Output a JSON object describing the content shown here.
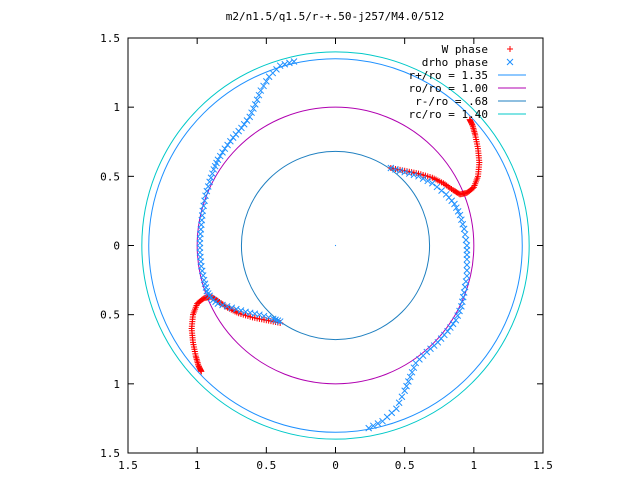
{
  "chart_data": {
    "type": "scatter",
    "title": "m2/n1.5/q1.5/r-+.50-j257/M4.0/512",
    "xlim": [
      -1.5,
      1.5
    ],
    "ylim": [
      -1.5,
      1.5
    ],
    "x_ticks": [
      "1.5",
      "1",
      "0.5",
      "0",
      "0.5",
      "1",
      "1.5"
    ],
    "y_ticks": [
      "1.5",
      "1",
      "0.5",
      "0",
      "0.5",
      "1",
      "1.5"
    ],
    "legend_position": "top-right",
    "grid": false,
    "series": [
      {
        "name": "W phase",
        "marker": "+",
        "color": "#ff0000",
        "arms": [
          [
            [
              0.4,
              0.56
            ],
            [
              0.5,
              0.54
            ],
            [
              0.6,
              0.52
            ],
            [
              0.7,
              0.49
            ],
            [
              0.78,
              0.45
            ],
            [
              0.85,
              0.4
            ],
            [
              0.9,
              0.37
            ],
            [
              0.95,
              0.38
            ],
            [
              1.0,
              0.42
            ],
            [
              1.03,
              0.5
            ],
            [
              1.04,
              0.6
            ],
            [
              1.03,
              0.7
            ],
            [
              1.01,
              0.8
            ],
            [
              0.99,
              0.87
            ],
            [
              0.97,
              0.91
            ]
          ],
          [
            [
              -0.4,
              -0.56
            ],
            [
              -0.5,
              -0.54
            ],
            [
              -0.6,
              -0.52
            ],
            [
              -0.7,
              -0.49
            ],
            [
              -0.78,
              -0.45
            ],
            [
              -0.85,
              -0.4
            ],
            [
              -0.9,
              -0.37
            ],
            [
              -0.95,
              -0.38
            ],
            [
              -1.0,
              -0.42
            ],
            [
              -1.03,
              -0.5
            ],
            [
              -1.04,
              -0.6
            ],
            [
              -1.03,
              -0.7
            ],
            [
              -1.01,
              -0.8
            ],
            [
              -0.99,
              -0.87
            ],
            [
              -0.97,
              -0.91
            ]
          ]
        ]
      },
      {
        "name": "drho phase",
        "marker": "x",
        "color": "#1e90ff",
        "arms": [
          [
            [
              -0.3,
              1.33
            ],
            [
              -0.4,
              1.3
            ],
            [
              -0.48,
              1.22
            ],
            [
              -0.54,
              1.12
            ],
            [
              -0.58,
              1.02
            ],
            [
              -0.62,
              0.93
            ],
            [
              -0.68,
              0.85
            ],
            [
              -0.74,
              0.78
            ],
            [
              -0.8,
              0.7
            ],
            [
              -0.85,
              0.62
            ],
            [
              -0.88,
              0.55
            ],
            [
              -0.91,
              0.46
            ],
            [
              -0.94,
              0.36
            ],
            [
              -0.96,
              0.25
            ],
            [
              -0.97,
              0.15
            ],
            [
              -0.98,
              0.05
            ],
            [
              -0.98,
              -0.05
            ],
            [
              -0.97,
              -0.15
            ],
            [
              -0.95,
              -0.25
            ],
            [
              -0.93,
              -0.33
            ],
            [
              -0.9,
              -0.38
            ],
            [
              -0.85,
              -0.42
            ],
            [
              -0.75,
              -0.45
            ],
            [
              -0.65,
              -0.48
            ],
            [
              -0.55,
              -0.5
            ],
            [
              -0.45,
              -0.53
            ],
            [
              -0.4,
              -0.55
            ]
          ],
          [
            [
              0.24,
              -1.32
            ],
            [
              0.34,
              -1.27
            ],
            [
              0.44,
              -1.18
            ],
            [
              0.5,
              -1.05
            ],
            [
              0.54,
              -0.95
            ],
            [
              0.58,
              -0.85
            ],
            [
              0.66,
              -0.77
            ],
            [
              0.74,
              -0.7
            ],
            [
              0.81,
              -0.62
            ],
            [
              0.87,
              -0.54
            ],
            [
              0.91,
              -0.44
            ],
            [
              0.93,
              -0.34
            ],
            [
              0.95,
              -0.22
            ],
            [
              0.95,
              -0.1
            ],
            [
              0.95,
              0.0
            ],
            [
              0.93,
              0.12
            ],
            [
              0.9,
              0.22
            ],
            [
              0.86,
              0.3
            ],
            [
              0.8,
              0.37
            ],
            [
              0.7,
              0.45
            ],
            [
              0.6,
              0.5
            ],
            [
              0.5,
              0.53
            ],
            [
              0.4,
              0.56
            ]
          ]
        ]
      },
      {
        "name": "r+/ro = 1.35",
        "type": "circle",
        "radius": 1.35,
        "color": "#1e90ff"
      },
      {
        "name": "ro/ro = 1.00",
        "type": "circle",
        "radius": 1.0,
        "color": "#b000b0"
      },
      {
        "name": "r-/ro = .68",
        "type": "circle",
        "radius": 0.68,
        "color": "#1e7fc0"
      },
      {
        "name": "rc/ro = 1.40",
        "type": "circle",
        "radius": 1.4,
        "color": "#00c8c8"
      }
    ]
  }
}
